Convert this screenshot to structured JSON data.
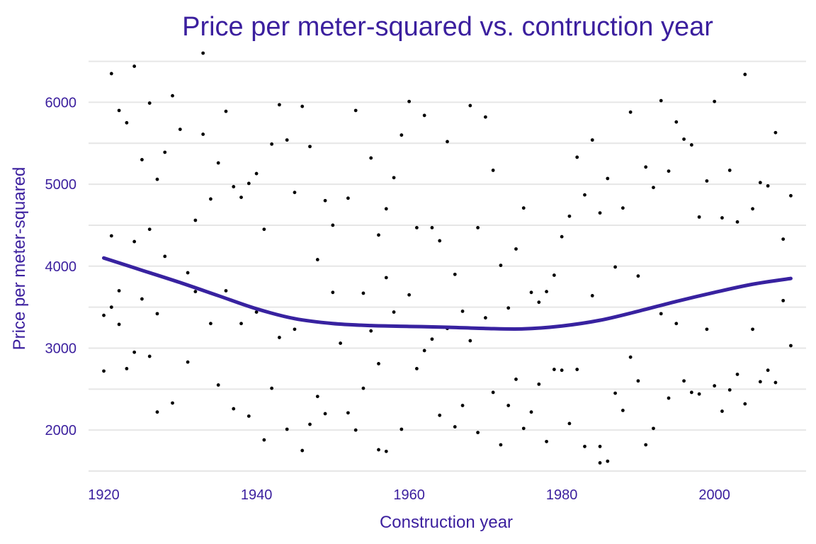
{
  "colors": {
    "text": "#3b1f9e",
    "trend": "#3822a0",
    "points": "#000000",
    "grid": "#e6e6e6",
    "background": "#ffffff"
  },
  "chart_data": {
    "type": "scatter",
    "title": "Price per meter-squared vs. contruction year",
    "xlabel": "Construction year",
    "ylabel": "Price per meter-squared",
    "xlim": [
      1918,
      2012
    ],
    "ylim": [
      1500,
      6600
    ],
    "xticks": [
      1920,
      1940,
      1960,
      1980,
      2000
    ],
    "yticks": [
      2000,
      3000,
      4000,
      5000,
      6000
    ],
    "grid": "horizontal",
    "legend": "none",
    "series": [
      {
        "kind": "points",
        "x": [
          1920,
          1920,
          1920,
          1921,
          1921,
          1921,
          1922,
          1922,
          1922,
          1923,
          1923,
          1924,
          1924,
          1924,
          1925,
          1925,
          1926,
          1926,
          1926,
          1927,
          1927,
          1927,
          1928,
          1928,
          1929,
          1929,
          1930,
          1931,
          1931,
          1932,
          1932,
          1933,
          1933,
          1934,
          1934,
          1935,
          1935,
          1936,
          1936,
          1937,
          1937,
          1938,
          1938,
          1939,
          1939,
          1940,
          1940,
          1941,
          1941,
          1942,
          1942,
          1943,
          1943,
          1944,
          1944,
          1945,
          1945,
          1946,
          1946,
          1947,
          1947,
          1948,
          1948,
          1949,
          1949,
          1950,
          1950,
          1951,
          1952,
          1952,
          1953,
          1953,
          1954,
          1954,
          1955,
          1955,
          1956,
          1956,
          1956,
          1957,
          1957,
          1957,
          1958,
          1958,
          1959,
          1959,
          1960,
          1960,
          1961,
          1961,
          1962,
          1962,
          1963,
          1963,
          1964,
          1964,
          1965,
          1965,
          1966,
          1966,
          1967,
          1967,
          1968,
          1968,
          1969,
          1969,
          1970,
          1970,
          1971,
          1971,
          1972,
          1972,
          1973,
          1973,
          1974,
          1974,
          1975,
          1975,
          1976,
          1976,
          1977,
          1977,
          1978,
          1978,
          1979,
          1979,
          1980,
          1980,
          1981,
          1981,
          1982,
          1982,
          1983,
          1983,
          1984,
          1984,
          1985,
          1985,
          1985,
          1986,
          1986,
          1987,
          1987,
          1988,
          1988,
          1989,
          1989,
          1990,
          1990,
          1991,
          1991,
          1992,
          1992,
          1993,
          1993,
          1994,
          1994,
          1995,
          1995,
          1996,
          1996,
          1997,
          1997,
          1998,
          1998,
          1999,
          1999,
          2000,
          2000,
          2001,
          2001,
          2002,
          2002,
          2003,
          2003,
          2004,
          2004,
          2005,
          2005,
          2006,
          2006,
          2007,
          2007,
          2008,
          2008,
          2009,
          2009,
          2010,
          2010
        ],
        "y": [
          4100,
          3400,
          2720,
          6350,
          3500,
          4370,
          5900,
          3700,
          3290,
          5750,
          2750,
          6440,
          4300,
          2950,
          5300,
          3600,
          5990,
          4450,
          2900,
          5060,
          3420,
          2220,
          5390,
          4120,
          6080,
          2330,
          5670,
          3920,
          2830,
          4560,
          3690,
          6600,
          5610,
          4820,
          3300,
          5260,
          2550,
          5890,
          3700,
          4970,
          2260,
          4840,
          3300,
          5010,
          2170,
          5130,
          3440,
          4450,
          1880,
          5490,
          2510,
          5970,
          3130,
          5540,
          2010,
          4900,
          3230,
          5950,
          1750,
          5460,
          2070,
          4080,
          2410,
          4800,
          2200,
          4500,
          3680,
          3060,
          4830,
          2210,
          5900,
          2000,
          3670,
          2510,
          5320,
          3210,
          4380,
          2810,
          1760,
          4700,
          3860,
          1740,
          5080,
          3440,
          5600,
          2010,
          6010,
          3650,
          4470,
          2750,
          5840,
          2970,
          4470,
          3110,
          4310,
          2180,
          5520,
          3240,
          3900,
          2040,
          3450,
          2300,
          5960,
          3090,
          4470,
          1970,
          5820,
          3370,
          5170,
          2460,
          4010,
          1820,
          3490,
          2300,
          4210,
          2620,
          4710,
          2020,
          3680,
          2220,
          3560,
          2560,
          3690,
          1860,
          3890,
          2740,
          4360,
          2730,
          4610,
          2080,
          5330,
          2740,
          4870,
          1800,
          5540,
          3640,
          1600,
          4650,
          1800,
          5070,
          1620,
          3990,
          2450,
          4710,
          2240,
          5880,
          2890,
          3880,
          2600,
          5210,
          1820,
          4960,
          2020,
          6020,
          3420,
          5160,
          2390,
          5760,
          3300,
          5550,
          2600,
          5480,
          2460,
          4600,
          2440,
          5040,
          3230,
          6010,
          2540,
          4590,
          2230,
          5170,
          2490,
          4540,
          2680,
          6340,
          2320,
          4700,
          3230,
          5020,
          2590,
          4980,
          2730,
          5630,
          2580,
          4330,
          3580,
          4860,
          3030
        ]
      },
      {
        "kind": "trend",
        "x": [
          1920,
          1925,
          1930,
          1935,
          1940,
          1945,
          1950,
          1955,
          1960,
          1965,
          1970,
          1975,
          1980,
          1985,
          1990,
          1995,
          2000,
          2005,
          2010
        ],
        "y": [
          4100,
          3950,
          3800,
          3640,
          3480,
          3360,
          3300,
          3275,
          3265,
          3255,
          3240,
          3235,
          3270,
          3340,
          3450,
          3570,
          3680,
          3780,
          3850
        ]
      }
    ]
  }
}
